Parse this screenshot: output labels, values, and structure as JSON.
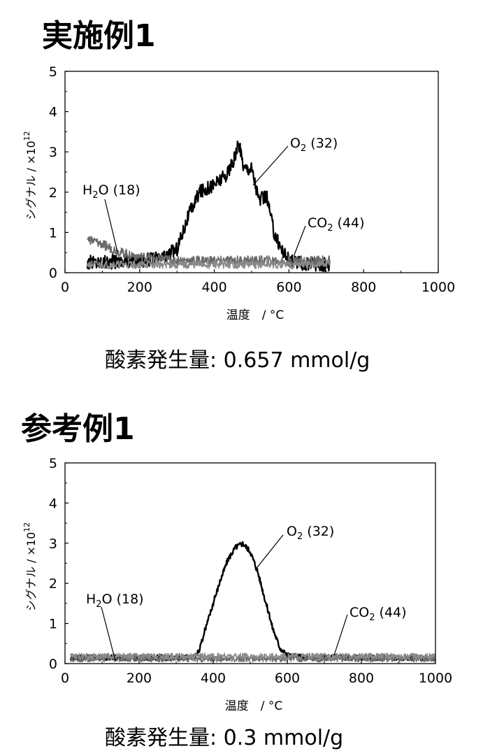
{
  "panels": [
    {
      "title": "実施例1",
      "result": "酸素発生量: 0.657 mmol/g",
      "chart_data": {
        "type": "line",
        "xlabel": "温度　/ °C",
        "ylabel": "シグナル / ×10",
        "ylabel_exp": "12",
        "xlim": [
          0,
          1000
        ],
        "ylim": [
          0,
          5
        ],
        "xticks": [
          "0",
          "200",
          "400",
          "600",
          "800",
          "1000"
        ],
        "yticks": [
          "0",
          "1",
          "2",
          "3",
          "4",
          "5"
        ],
        "grid": false,
        "series": [
          {
            "name": "O2 (32)",
            "label_main": "O",
            "label_sub": "2",
            "label_rest": " (32)",
            "x": [
              60,
              200,
              260,
              300,
              330,
              360,
              400,
              430,
              450,
              465,
              480,
              500,
              520,
              540,
              560,
              580,
              600,
              620,
              650,
              710
            ],
            "y": [
              0.25,
              0.3,
              0.35,
              0.6,
              1.4,
              2.0,
              2.2,
              2.4,
              2.7,
              3.2,
              2.6,
              2.6,
              1.8,
              1.9,
              1.0,
              0.6,
              0.3,
              0.25,
              0.2,
              0.2
            ],
            "noise": 0.18,
            "stroke": "#000000",
            "width": 2.2
          },
          {
            "name": "H2O (18)",
            "label_main": "H",
            "label_sub": "2",
            "label_rest": "O (18)",
            "x": [
              60,
              100,
              150,
              200,
              250,
              300,
              400,
              500,
              600,
              710
            ],
            "y": [
              0.85,
              0.7,
              0.5,
              0.4,
              0.35,
              0.3,
              0.3,
              0.3,
              0.3,
              0.3
            ],
            "noise": 0.12,
            "stroke": "#6a6a6a",
            "width": 1.6
          },
          {
            "name": "CO2 (44)",
            "label_main": "CO",
            "label_sub": "2",
            "label_rest": " (44)",
            "x": [
              60,
              200,
              400,
              600,
              710
            ],
            "y": [
              0.2,
              0.2,
              0.2,
              0.2,
              0.2
            ],
            "noise": 0.1,
            "stroke": "#8a8a8a",
            "width": 1.6
          }
        ]
      }
    },
    {
      "title": "参考例1",
      "result": "酸素発生量: 0.3 mmol/g",
      "chart_data": {
        "type": "line",
        "xlabel": "温度　/ °C",
        "ylabel": "シグナル / ×10",
        "ylabel_exp": "12",
        "xlim": [
          0,
          1000
        ],
        "ylim": [
          0,
          5
        ],
        "xticks": [
          "0",
          "200",
          "400",
          "600",
          "800",
          "1000"
        ],
        "yticks": [
          "0",
          "1",
          "2",
          "3",
          "4",
          "5"
        ],
        "grid": false,
        "series": [
          {
            "name": "O2 (32)",
            "label_main": "O",
            "label_sub": "2",
            "label_rest": " (32)",
            "x": [
              15,
              200,
              350,
              365,
              380,
              400,
              420,
              440,
              460,
              480,
              500,
              520,
              540,
              560,
              580,
              600,
              650,
              700,
              1000
            ],
            "y": [
              0.15,
              0.15,
              0.15,
              0.4,
              0.9,
              1.5,
              2.1,
              2.6,
              2.9,
              3.0,
              2.8,
              2.3,
              1.6,
              0.9,
              0.4,
              0.2,
              0.15,
              0.15,
              0.15
            ],
            "noise": 0.07,
            "stroke": "#000000",
            "width": 2.4
          },
          {
            "name": "H2O (18)",
            "label_main": "H",
            "label_sub": "2",
            "label_rest": "O (18)",
            "x": [
              15,
              300,
              600,
              1000
            ],
            "y": [
              0.12,
              0.12,
              0.12,
              0.12
            ],
            "noise": 0.08,
            "stroke": "#6a6a6a",
            "width": 1.6
          },
          {
            "name": "CO2 (44)",
            "label_main": "CO",
            "label_sub": "2",
            "label_rest": " (44)",
            "x": [
              15,
              300,
              600,
              1000
            ],
            "y": [
              0.18,
              0.18,
              0.18,
              0.18
            ],
            "noise": 0.08,
            "stroke": "#8a8a8a",
            "width": 1.6
          }
        ]
      }
    }
  ]
}
